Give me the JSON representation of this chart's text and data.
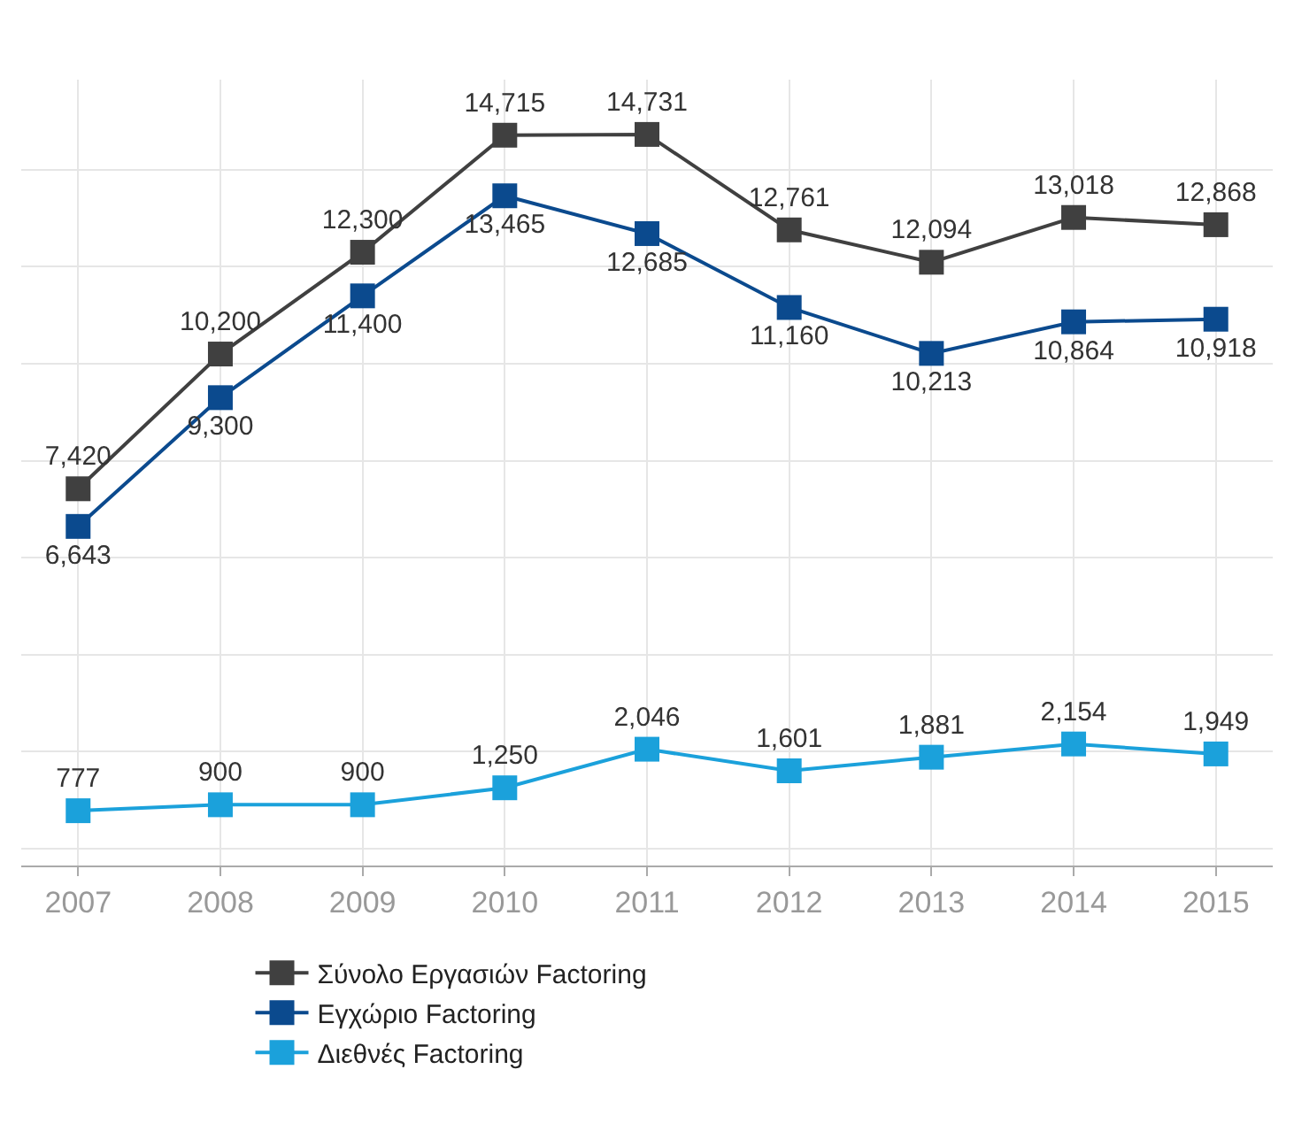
{
  "chart_data": {
    "type": "line",
    "categories": [
      "2007",
      "2008",
      "2009",
      "2010",
      "2011",
      "2012",
      "2013",
      "2014",
      "2015"
    ],
    "series": [
      {
        "name": "Σύνολο Εργασιών Factoring",
        "color": "#404040",
        "values": [
          7420,
          10200,
          12300,
          14715,
          14731,
          12761,
          12094,
          13018,
          12868
        ],
        "value_labels": [
          "7,420",
          "10,200",
          "12,300",
          "14,715",
          "14,731",
          "12,761",
          "12,094",
          "13,018",
          "12,868"
        ]
      },
      {
        "name": "Εγχώριο Factoring",
        "color": "#0b4a8e",
        "values": [
          6643,
          9300,
          11400,
          13465,
          12685,
          11160,
          10213,
          10864,
          10918
        ],
        "value_labels": [
          "6,643",
          "9,300",
          "11,400",
          "13,465",
          "12,685",
          "11,160",
          "10,213",
          "10,864",
          "10,918"
        ]
      },
      {
        "name": "Διεθνές Factoring",
        "color": "#1ba1db",
        "values": [
          777,
          900,
          900,
          1250,
          2046,
          1601,
          1881,
          2154,
          1949
        ],
        "value_labels": [
          "777",
          "900",
          "900",
          "1,250",
          "2,046",
          "1,601",
          "1,881",
          "2,154",
          "1,949"
        ]
      }
    ],
    "marker": "square",
    "grid": true,
    "legend": "bottom",
    "tick_labels": "x"
  }
}
